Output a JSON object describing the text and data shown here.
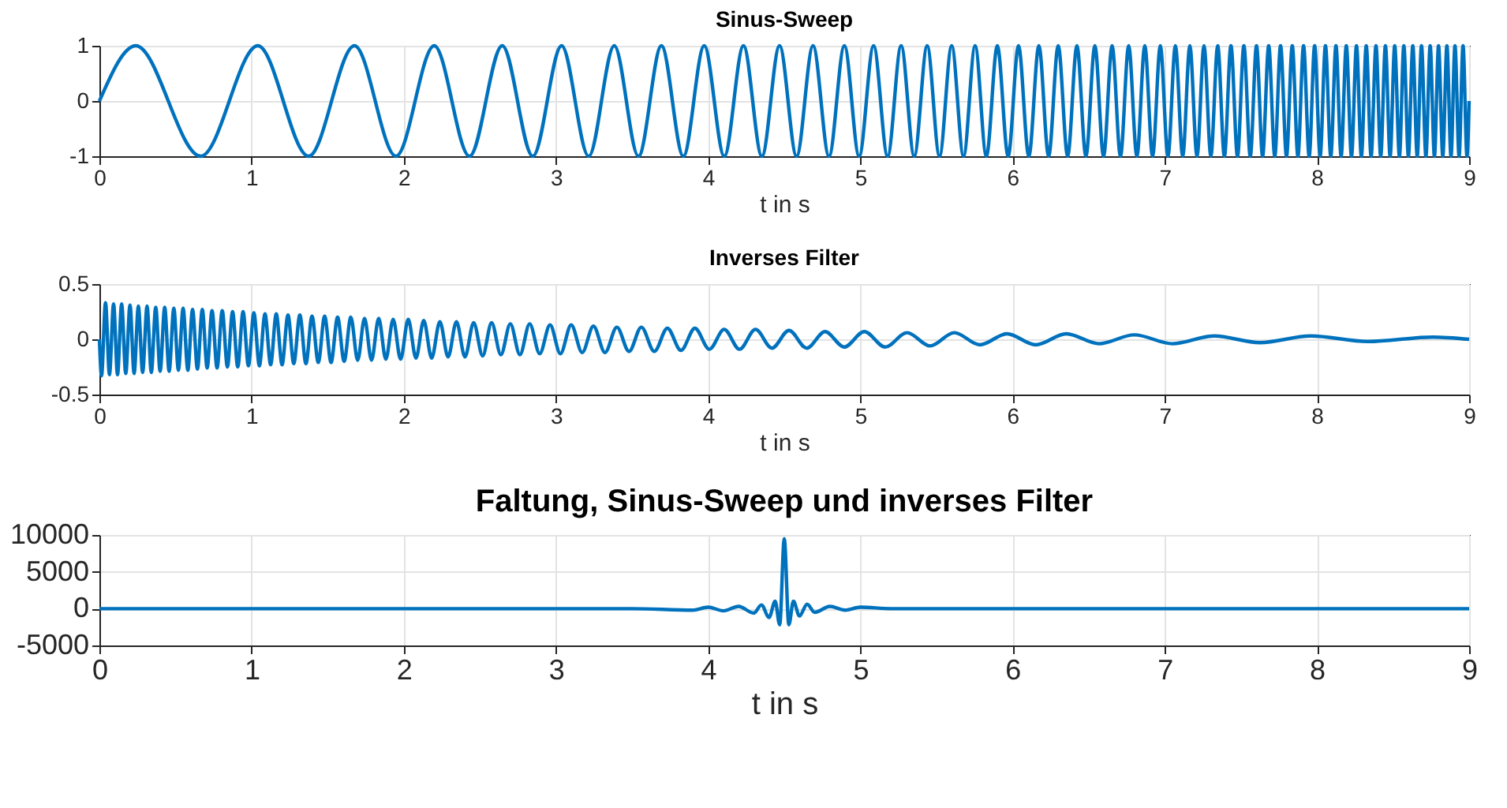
{
  "chart_data": [
    {
      "type": "line",
      "title": "Sinus-Sweep",
      "xlabel": "t in s",
      "color": "#0072bd",
      "xlim": [
        0,
        9
      ],
      "xticks": [
        0,
        1,
        2,
        3,
        4,
        5,
        6,
        7,
        8,
        9
      ],
      "ylim": [
        -1,
        1
      ],
      "yticks": [
        -1,
        0,
        1
      ],
      "grid": true,
      "x": [
        0,
        0.239,
        0.666,
        1.041,
        1.375,
        1.676,
        1.949,
        2.2,
        2.432,
        2.647,
        2.848,
        3.037,
        3.215,
        3.383,
        3.542,
        3.693,
        3.837,
        3.974,
        4.106,
        4.232,
        4.353,
        4.469,
        4.581,
        4.689,
        4.794,
        4.895,
        4.992,
        5.087,
        5.179,
        5.268,
        5.354,
        5.439,
        5.52,
        5.6,
        5.678,
        5.754,
        5.828,
        5.9,
        5.971,
        6.039,
        6.107,
        6.173,
        6.237,
        6.3,
        6.362,
        6.423,
        6.482,
        6.541,
        6.598,
        6.654,
        6.709,
        6.763,
        6.817,
        6.869,
        6.92,
        6.971,
        7.021,
        7.07,
        7.118,
        7.165,
        7.212,
        7.258,
        7.303,
        7.348,
        7.392,
        7.435,
        7.478,
        7.52,
        7.562,
        7.603,
        7.643,
        7.683,
        7.723,
        7.761,
        7.8,
        7.838,
        7.875,
        7.912,
        7.949,
        7.985,
        8.021,
        8.056,
        8.091,
        8.125,
        8.159,
        8.193,
        8.227,
        8.26,
        8.292,
        8.324,
        8.356,
        8.388,
        8.419,
        8.45,
        8.481,
        8.511,
        8.542,
        8.571,
        8.601,
        8.63,
        8.659,
        8.687,
        8.716,
        8.744,
        8.772,
        8.799,
        8.827,
        8.854,
        8.881,
        8.907,
        8.934,
        8.96,
        8.986,
        9
      ],
      "values": [
        0,
        1,
        -1,
        1,
        -1,
        1,
        -1,
        1,
        -1,
        1,
        -1,
        1,
        -1,
        1,
        -1,
        1,
        -1,
        1,
        -1,
        1,
        -1,
        1,
        -1,
        1,
        -1,
        1,
        -1,
        1,
        -1,
        1,
        -1,
        1,
        -1,
        1,
        -1,
        1,
        -1,
        1,
        -1,
        1,
        -1,
        1,
        -1,
        1,
        -1,
        1,
        -1,
        1,
        -1,
        1,
        -1,
        1,
        -1,
        1,
        -1,
        1,
        -1,
        1,
        -1,
        1,
        -1,
        1,
        -1,
        1,
        -1,
        1,
        -1,
        1,
        -1,
        1,
        -1,
        1,
        -1,
        1,
        -1,
        1,
        -1,
        1,
        -1,
        1,
        -1,
        1,
        -1,
        1,
        -1,
        1,
        -1,
        1,
        -1,
        1,
        -1,
        1,
        -1,
        1,
        -1,
        1,
        -1,
        1,
        -1,
        1,
        -1,
        1,
        -1,
        1,
        -1,
        1,
        -1,
        1,
        -1,
        1,
        -1,
        1,
        -1,
        0
      ]
    },
    {
      "type": "line",
      "title": "Inverses Filter",
      "xlabel": "t in s",
      "color": "#0072bd",
      "xlim": [
        0,
        9
      ],
      "xticks": [
        0,
        1,
        2,
        3,
        4,
        5,
        6,
        7,
        8,
        9
      ],
      "ylim": [
        -0.5,
        0.5
      ],
      "yticks": [
        -0.5,
        0,
        0.5
      ],
      "grid": true,
      "x": [
        0,
        0.014,
        0.04,
        0.066,
        0.093,
        0.119,
        0.146,
        0.173,
        0.201,
        0.228,
        0.256,
        0.284,
        0.313,
        0.341,
        0.37,
        0.399,
        0.429,
        0.458,
        0.489,
        0.519,
        0.55,
        0.581,
        0.612,
        0.644,
        0.676,
        0.708,
        0.74,
        0.773,
        0.807,
        0.841,
        0.875,
        0.909,
        0.944,
        0.979,
        1.015,
        1.051,
        1.088,
        1.125,
        1.162,
        1.2,
        1.239,
        1.277,
        1.317,
        1.357,
        1.397,
        1.438,
        1.48,
        1.522,
        1.565,
        1.608,
        1.652,
        1.697,
        1.742,
        1.788,
        1.835,
        1.882,
        1.93,
        1.979,
        2.029,
        2.08,
        2.131,
        2.183,
        2.237,
        2.291,
        2.346,
        2.402,
        2.459,
        2.518,
        2.577,
        2.638,
        2.7,
        2.763,
        2.827,
        2.893,
        2.961,
        3.029,
        3.1,
        3.172,
        3.246,
        3.322,
        3.4,
        3.48,
        3.561,
        3.646,
        3.732,
        3.821,
        3.913,
        4.008,
        4.105,
        4.206,
        4.311,
        4.419,
        4.531,
        4.647,
        4.768,
        4.894,
        5.026,
        5.163,
        5.307,
        5.458,
        5.617,
        5.785,
        5.963,
        6.152,
        6.353,
        6.568,
        6.8,
        7.051,
        7.324,
        7.625,
        7.959,
        8.334,
        8.761,
        9
      ],
      "values": [
        0,
        -0.33,
        0.33,
        -0.32,
        0.32,
        -0.32,
        0.32,
        -0.31,
        0.31,
        -0.31,
        0.3,
        -0.3,
        0.3,
        -0.3,
        0.29,
        -0.29,
        0.29,
        -0.29,
        0.28,
        -0.28,
        0.28,
        -0.28,
        0.27,
        -0.27,
        0.27,
        -0.26,
        0.26,
        -0.26,
        0.26,
        -0.25,
        0.25,
        -0.25,
        0.25,
        -0.24,
        0.24,
        -0.24,
        0.23,
        -0.23,
        0.23,
        -0.23,
        0.22,
        -0.22,
        0.22,
        -0.22,
        0.21,
        -0.21,
        0.21,
        -0.21,
        0.2,
        -0.2,
        0.2,
        -0.19,
        0.19,
        -0.19,
        0.19,
        -0.18,
        0.18,
        -0.18,
        0.18,
        -0.17,
        0.17,
        -0.17,
        0.16,
        -0.16,
        0.16,
        -0.16,
        0.15,
        -0.15,
        0.15,
        -0.14,
        0.14,
        -0.14,
        0.14,
        -0.13,
        0.13,
        -0.13,
        0.13,
        -0.12,
        0.12,
        -0.12,
        0.11,
        -0.11,
        0.11,
        -0.11,
        0.1,
        -0.1,
        0.1,
        -0.09,
        0.09,
        -0.09,
        0.09,
        -0.08,
        0.08,
        -0.08,
        0.07,
        -0.07,
        0.07,
        -0.07,
        0.06,
        -0.06,
        0.06,
        -0.05,
        0.05,
        -0.05,
        0.05,
        -0.04,
        0.04,
        -0.04,
        0.03,
        -0.03,
        0.03,
        -0.02,
        0.02,
        0
      ]
    },
    {
      "type": "line",
      "title": "Faltung, Sinus-Sweep und inverses Filter",
      "xlabel": "t in s",
      "color": "#0072bd",
      "xlim": [
        0,
        9
      ],
      "xticks": [
        0,
        1,
        2,
        3,
        4,
        5,
        6,
        7,
        8,
        9
      ],
      "ylim": [
        -5000,
        10000
      ],
      "yticks": [
        -5000,
        0,
        5000,
        10000
      ],
      "grid": true,
      "x": [
        0,
        3.5,
        3.9,
        4.0,
        4.1,
        4.2,
        4.3,
        4.35,
        4.4,
        4.44,
        4.47,
        4.5,
        4.53,
        4.56,
        4.6,
        4.65,
        4.7,
        4.8,
        4.9,
        5.0,
        5.2,
        9
      ],
      "values": [
        0,
        0,
        -200,
        200,
        -300,
        300,
        -600,
        500,
        -1200,
        1000,
        -2200,
        9500,
        -2200,
        1000,
        -1000,
        600,
        -500,
        300,
        -200,
        200,
        0,
        0
      ]
    }
  ]
}
